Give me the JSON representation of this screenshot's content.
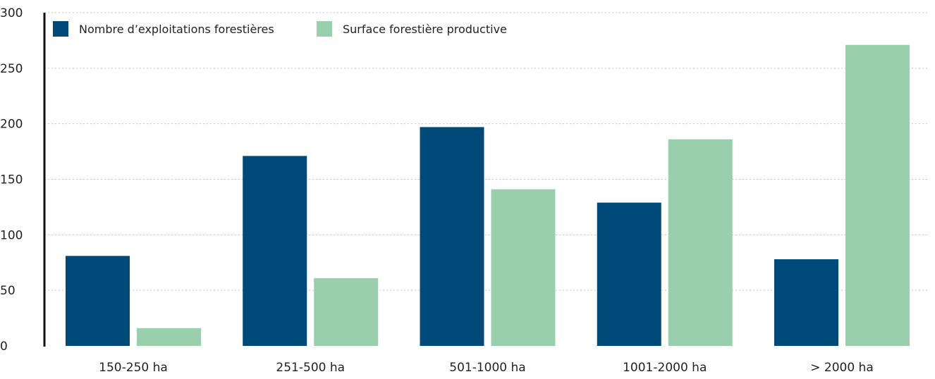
{
  "chart_data": {
    "type": "bar",
    "categories": [
      "150-250 ha",
      "251-500 ha",
      "501-1000 ha",
      "1001-2000 ha",
      "> 2000 ha"
    ],
    "series": [
      {
        "name": "Nombre d’exploitations forestières",
        "color": "#004a7a",
        "values": [
          81,
          171,
          197,
          129,
          78
        ]
      },
      {
        "name": "Surface forestière productive",
        "color": "#99cfad",
        "values": [
          16,
          61,
          141,
          186,
          271
        ]
      }
    ],
    "y_ticks": [
      0,
      50,
      100,
      150,
      200,
      250,
      300
    ],
    "ylim": [
      0,
      300
    ],
    "grid": true,
    "legend_position": "top-left"
  }
}
